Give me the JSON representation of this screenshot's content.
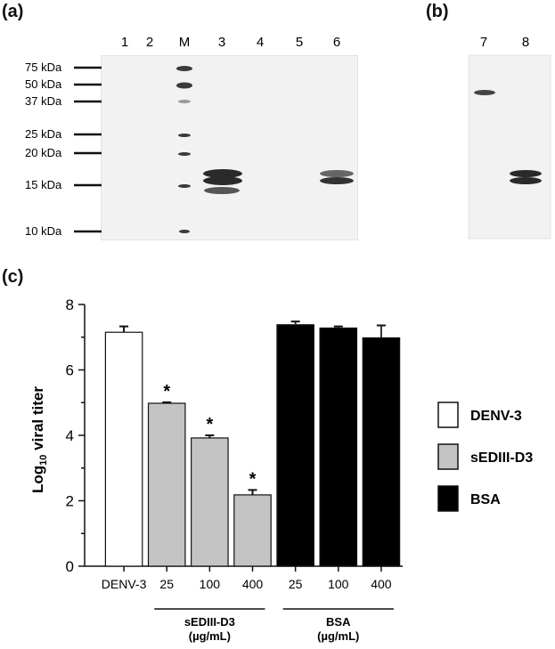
{
  "panel_a": {
    "label": "(a)",
    "lane_labels": [
      "1",
      "2",
      "M",
      "3",
      "4",
      "5",
      "6"
    ],
    "markers": [
      "75 kDa",
      "50 kDa",
      "37 kDa",
      "25 kDa",
      "20 kDa",
      "15 kDa",
      "10 kDa"
    ]
  },
  "panel_b": {
    "label": "(b)",
    "lane_labels": [
      "7",
      "8"
    ]
  },
  "panel_c": {
    "label": "(c)",
    "chart_data": {
      "type": "bar",
      "ylabel_main": "Log",
      "ylabel_sub": "10",
      "ylabel_rest": " viral titer",
      "ylim": [
        0,
        8
      ],
      "yticks": [
        "0",
        "2",
        "4",
        "6",
        "8"
      ],
      "categories": [
        "DENV-3",
        "25",
        "100",
        "400",
        "25",
        "100",
        "400"
      ],
      "values": [
        7.15,
        4.98,
        3.92,
        2.18,
        7.38,
        7.28,
        6.98
      ],
      "errors": [
        0.18,
        0.03,
        0.08,
        0.15,
        0.1,
        0.05,
        0.38
      ],
      "group": [
        "DENV-3",
        "sEDIII-D3",
        "sEDIII-D3",
        "sEDIII-D3",
        "BSA",
        "BSA",
        "BSA"
      ],
      "significant": [
        false,
        true,
        true,
        true,
        false,
        false,
        false
      ],
      "significance_mark": "*",
      "group_labels": [
        {
          "line1": "sEDIII-D3",
          "line2": "(µg/mL)"
        },
        {
          "line1": "BSA",
          "line2": "(µg/mL)"
        }
      ],
      "legend": [
        {
          "name": "DENV-3",
          "color": "#ffffff"
        },
        {
          "name": "sEDIII-D3",
          "color": "#c4c4c4"
        },
        {
          "name": "BSA",
          "color": "#000000"
        }
      ],
      "legend_position": "right"
    }
  }
}
